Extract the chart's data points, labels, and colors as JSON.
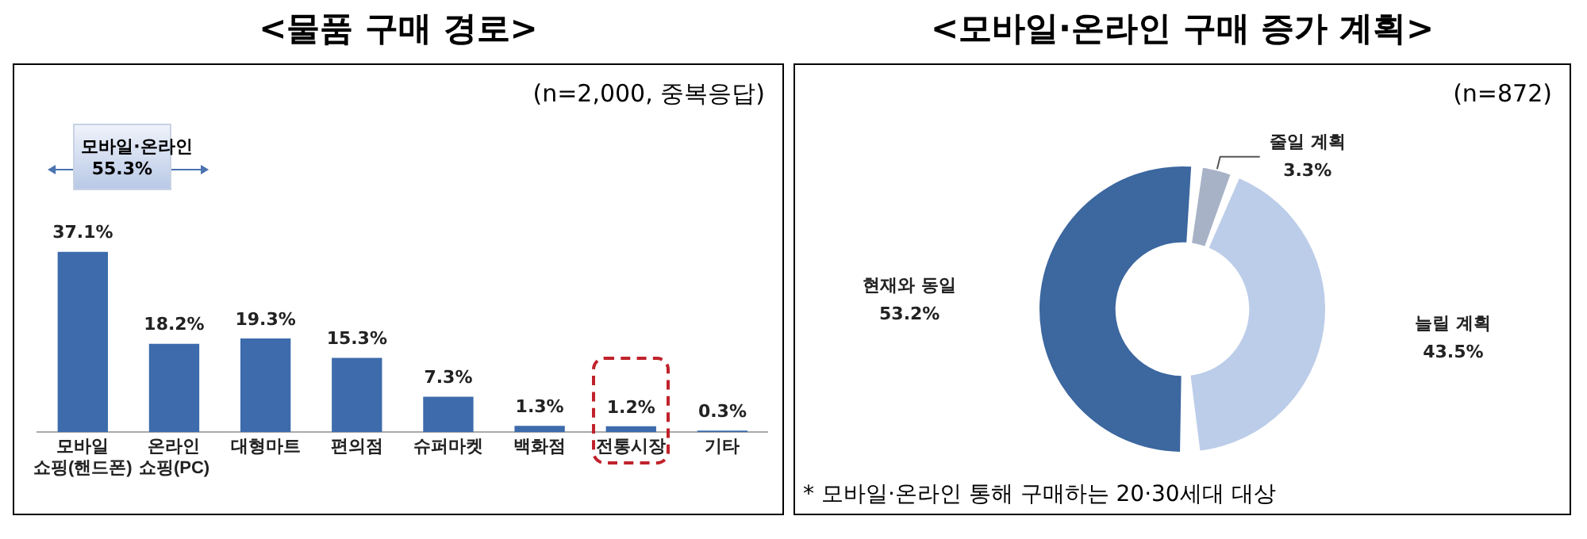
{
  "chart_data": [
    {
      "type": "bar",
      "title": "<물품 구매 경로>",
      "categories": [
        "모바일 쇼핑(핸드폰)",
        "온라인 쇼핑(PC)",
        "대형마트",
        "편의점",
        "슈퍼마켓",
        "백화점",
        "전통시장",
        "기타"
      ],
      "values": [
        37.1,
        18.2,
        19.3,
        15.3,
        7.3,
        1.3,
        1.2,
        0.3
      ],
      "color": "#3d6bab",
      "value_labels": [
        "37.1%",
        "18.2%",
        "19.3%",
        "15.3%",
        "7.3%",
        "1.3%",
        "1.2%",
        "0.3%"
      ],
      "annotations": [
        "(n=2,000, 중복응답)",
        "모바일·온라인\n55.3%"
      ],
      "grid": false,
      "legend": false
    },
    {
      "type": "donut",
      "title": "<모바일·온라인 구매 증가 계획>",
      "categories": [
        "줄일 계획",
        "늘릴 계획",
        "현재와 동일"
      ],
      "values": [
        3.3,
        43.5,
        53.2
      ],
      "colors": [
        "#a7b2c6",
        "#bccde9",
        "#3c679f"
      ],
      "value_labels": [
        "3.3%",
        "43.5%",
        "53.2%"
      ],
      "annotations": [
        "(n=872)",
        "* 모바일·온라인 통해 구매하는 20·30세대 대상"
      ],
      "legend": false
    }
  ]
}
